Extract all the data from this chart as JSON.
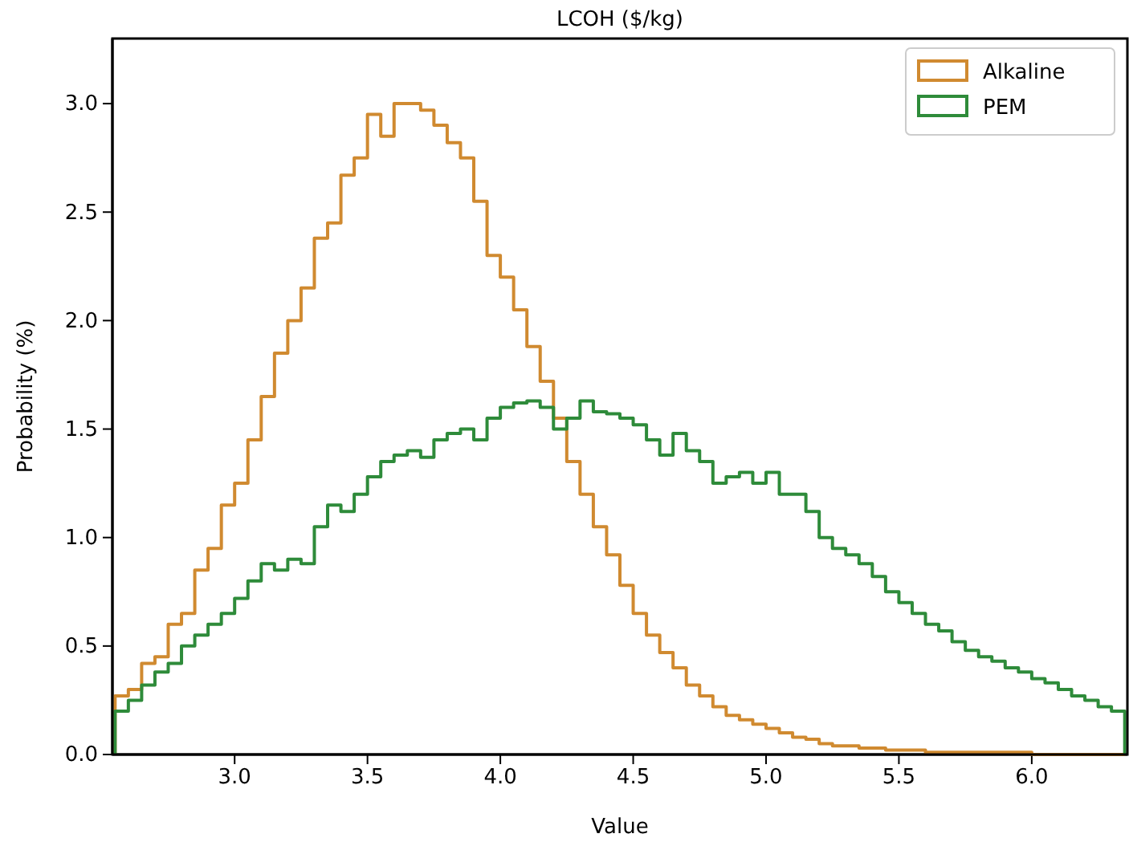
{
  "chart_data": {
    "type": "histogram",
    "title": "LCOH ($/kg)",
    "xlabel": "Value",
    "ylabel": "Probability (%)",
    "bins": [
      2.55,
      2.6,
      2.65,
      2.7,
      2.75,
      2.8,
      2.85,
      2.9,
      2.95,
      3.0,
      3.05,
      3.1,
      3.15,
      3.2,
      3.25,
      3.3,
      3.35,
      3.4,
      3.45,
      3.5,
      3.55,
      3.6,
      3.65,
      3.7,
      3.75,
      3.8,
      3.85,
      3.9,
      3.95,
      4.0,
      4.05,
      4.1,
      4.15,
      4.2,
      4.25,
      4.3,
      4.35,
      4.4,
      4.45,
      4.5,
      4.55,
      4.6,
      4.65,
      4.7,
      4.75,
      4.8,
      4.85,
      4.9,
      4.95,
      5.0,
      5.05,
      5.1,
      5.15,
      5.2,
      5.25,
      5.3,
      5.35,
      5.4,
      5.45,
      5.5,
      5.55,
      5.6,
      5.65,
      5.7,
      5.75,
      5.8,
      5.85,
      5.9,
      5.95,
      6.0,
      6.05,
      6.1,
      6.15,
      6.2,
      6.25,
      6.3,
      6.35
    ],
    "series": [
      {
        "name": "Alkaline",
        "color": "#d08a30",
        "values": [
          0.27,
          0.3,
          0.42,
          0.45,
          0.6,
          0.65,
          0.85,
          0.95,
          1.15,
          1.25,
          1.45,
          1.65,
          1.85,
          2.0,
          2.15,
          2.38,
          2.45,
          2.67,
          2.75,
          2.95,
          2.85,
          3.0,
          3.0,
          2.97,
          2.9,
          2.82,
          2.75,
          2.55,
          2.3,
          2.2,
          2.05,
          1.88,
          1.72,
          1.55,
          1.35,
          1.2,
          1.05,
          0.92,
          0.78,
          0.65,
          0.55,
          0.47,
          0.4,
          0.32,
          0.27,
          0.22,
          0.18,
          0.16,
          0.14,
          0.12,
          0.1,
          0.08,
          0.07,
          0.05,
          0.04,
          0.04,
          0.03,
          0.03,
          0.02,
          0.02,
          0.02,
          0.01,
          0.01,
          0.01,
          0.01,
          0.01,
          0.01,
          0.01,
          0.01,
          0,
          0,
          0,
          0,
          0,
          0,
          0
        ]
      },
      {
        "name": "PEM",
        "color": "#2e8b3a",
        "values": [
          0.2,
          0.25,
          0.32,
          0.38,
          0.42,
          0.5,
          0.55,
          0.6,
          0.65,
          0.72,
          0.8,
          0.88,
          0.85,
          0.9,
          0.88,
          1.05,
          1.15,
          1.12,
          1.2,
          1.28,
          1.35,
          1.38,
          1.4,
          1.37,
          1.45,
          1.48,
          1.5,
          1.45,
          1.55,
          1.6,
          1.62,
          1.63,
          1.6,
          1.5,
          1.55,
          1.63,
          1.58,
          1.57,
          1.55,
          1.52,
          1.45,
          1.38,
          1.48,
          1.4,
          1.35,
          1.25,
          1.28,
          1.3,
          1.25,
          1.3,
          1.2,
          1.2,
          1.12,
          1.0,
          0.95,
          0.92,
          0.88,
          0.82,
          0.75,
          0.7,
          0.65,
          0.6,
          0.57,
          0.52,
          0.48,
          0.45,
          0.43,
          0.4,
          0.38,
          0.35,
          0.33,
          0.3,
          0.27,
          0.25,
          0.22,
          0.2
        ]
      }
    ],
    "xlim": [
      2.54,
      6.36
    ],
    "xticks": [
      {
        "value": 3,
        "label": "3.0"
      },
      3.5,
      {
        "value": 4,
        "label": "4.0"
      },
      4.5,
      {
        "value": 5,
        "label": "5.0"
      },
      5.5,
      {
        "value": 6,
        "label": "6.0"
      }
    ],
    "ylim": [
      0,
      3.3
    ],
    "yticks": [
      {
        "value": 0,
        "label": "0.0"
      },
      0.5,
      {
        "value": 1,
        "label": "1.0"
      },
      1.5,
      {
        "value": 2,
        "label": "2.0"
      },
      2.5,
      {
        "value": 3,
        "label": "3.0"
      }
    ],
    "legend": "top right"
  }
}
